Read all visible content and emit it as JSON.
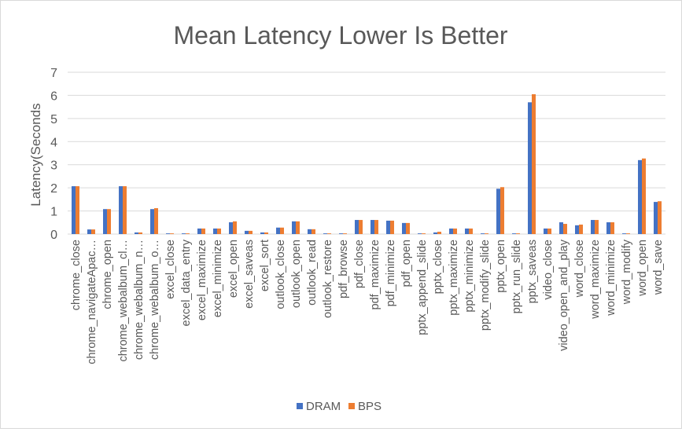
{
  "chart_data": {
    "type": "bar",
    "title": "Mean Latency Lower Is Better",
    "xlabel": "",
    "ylabel": "Latency(Seconds",
    "ylim": [
      0,
      7
    ],
    "yticks": [
      0,
      1,
      2,
      3,
      4,
      5,
      6,
      7
    ],
    "grid": true,
    "legend": "bottom",
    "colors": {
      "DRAM": "#4472c4",
      "BPS": "#ed7d31"
    },
    "categories": [
      "chrome_close",
      "chrome_navigateApac…",
      "chrome_open",
      "chrome_webalbum_cl…",
      "chrome_webalbum_n…",
      "chrome_webalbum_o…",
      "excel_close",
      "excel_data_entry",
      "excel_maximize",
      "excel_minimize",
      "excel_open",
      "excel_saveas",
      "excel_sort",
      "outlook_close",
      "outlook_open",
      "outlook_read",
      "outlook_restore",
      "pdf_browse",
      "pdf_close",
      "pdf_maximize",
      "pdf_minimize",
      "pdf_open",
      "pptx_append_slide",
      "pptx_close",
      "pptx_maximize",
      "pptx_minimize",
      "pptx_modify_slide",
      "pptx_open",
      "pptx_run_slide",
      "pptx_saveas",
      "video_close",
      "video_open_and_play",
      "word_close",
      "word_maximize",
      "word_minimize",
      "word_modify",
      "word_open",
      "word_save"
    ],
    "series": [
      {
        "name": "DRAM",
        "values": [
          2.07,
          0.2,
          1.08,
          2.07,
          0.07,
          1.08,
          0.03,
          0.03,
          0.24,
          0.24,
          0.51,
          0.14,
          0.07,
          0.28,
          0.55,
          0.21,
          0.03,
          0.03,
          0.61,
          0.61,
          0.58,
          0.48,
          0.03,
          0.07,
          0.24,
          0.24,
          0.03,
          1.96,
          0.03,
          5.7,
          0.24,
          0.51,
          0.38,
          0.61,
          0.51,
          0.03,
          3.2,
          1.39
        ]
      },
      {
        "name": "BPS",
        "values": [
          2.07,
          0.2,
          1.08,
          2.07,
          0.07,
          1.12,
          0.03,
          0.03,
          0.24,
          0.24,
          0.55,
          0.14,
          0.07,
          0.28,
          0.55,
          0.21,
          0.03,
          0.03,
          0.61,
          0.61,
          0.58,
          0.48,
          0.03,
          0.1,
          0.24,
          0.24,
          0.03,
          2.03,
          0.03,
          6.05,
          0.24,
          0.44,
          0.41,
          0.61,
          0.51,
          0.03,
          3.27,
          1.42
        ]
      }
    ]
  }
}
